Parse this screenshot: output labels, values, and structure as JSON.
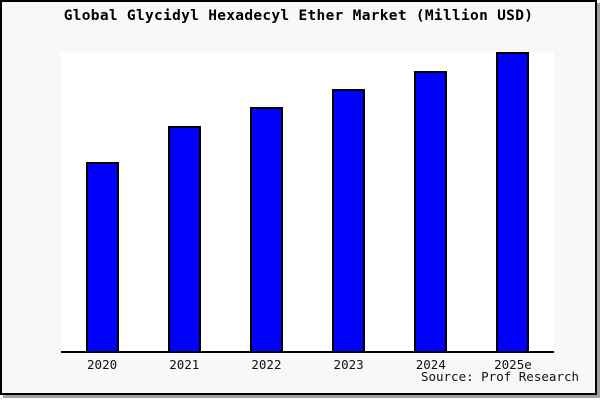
{
  "title": "Global Glycidyl Hexadecyl Ether Market (Million USD)",
  "source_credit": "Source: Prof Research",
  "colors": {
    "bar_fill": "#0000ff",
    "bar_border": "#000000",
    "canvas_background": "#f8f8f8",
    "plot_background": "#ffffff",
    "frame_border": "#000000",
    "frame_shadow": "#a0a0a0",
    "text": "#111111"
  },
  "chart_data": {
    "type": "bar",
    "title": "Global Glycidyl Hexadecyl Ether Market (Million USD)",
    "categories": [
      "2020",
      "2021",
      "2022",
      "2023",
      "2024",
      "2025e"
    ],
    "values": [
      63.1,
      75.1,
      81.5,
      87.7,
      93.8,
      100
    ],
    "xlabel": "",
    "ylabel": "",
    "unit": "relative height (no y-axis ticks shown; normalized to 2025e = 100)",
    "ylim": [
      0,
      100
    ],
    "grid": false,
    "legend": false,
    "y_axis_ticks_visible": false,
    "bar_color": "#0000ff",
    "annotations": [
      "Source: Prof Research"
    ]
  }
}
